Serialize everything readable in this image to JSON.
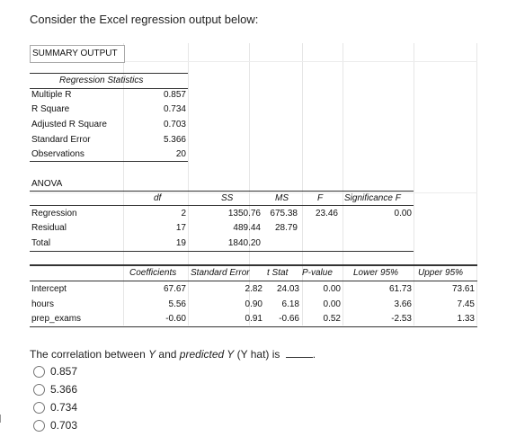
{
  "question": "Consider the Excel regression output below:",
  "summary_output_label": "SUMMARY OUTPUT",
  "regression_statistics": {
    "header": "Regression Statistics",
    "rows": [
      {
        "label": "Multiple R",
        "value": "0.857"
      },
      {
        "label": "R Square",
        "value": "0.734"
      },
      {
        "label": "Adjusted R Square",
        "value": "0.703"
      },
      {
        "label": "Standard Error",
        "value": "5.366"
      },
      {
        "label": "Observations",
        "value": "20"
      }
    ]
  },
  "anova": {
    "label": "ANOVA",
    "headers": [
      "df",
      "SS",
      "MS",
      "F",
      "Significance F"
    ],
    "rows": [
      {
        "label": "Regression",
        "df": "2",
        "ss": "1350.76",
        "ms": "675.38",
        "f": "23.46",
        "sig": "0.00"
      },
      {
        "label": "Residual",
        "df": "17",
        "ss": "489.44",
        "ms": "28.79"
      },
      {
        "label": "Total",
        "df": "19",
        "ss": "1840.20"
      }
    ]
  },
  "coefficients": {
    "headers": [
      "Coefficients",
      "Standard Error",
      "t Stat",
      "P-value",
      "Lower 95%",
      "Upper 95%"
    ],
    "rows": [
      {
        "label": "Intercept",
        "coef": "67.67",
        "se": "2.82",
        "t": "24.03",
        "p": "0.00",
        "lower": "61.73",
        "upper": "73.61"
      },
      {
        "label": "hours",
        "coef": "5.56",
        "se": "0.90",
        "t": "6.18",
        "p": "0.00",
        "lower": "3.66",
        "upper": "7.45"
      },
      {
        "label": "prep_exams",
        "coef": "-0.60",
        "se": "0.91",
        "t": "-0.66",
        "p": "0.52",
        "lower": "-2.53",
        "upper": "1.33"
      }
    ]
  },
  "prompt": {
    "text_a": "The correlation between ",
    "y": "Y",
    "text_b": " and ",
    "predicted": "predicted",
    "text_c": " Y",
    "text_d": " (Y hat) is ",
    "text_e": "."
  },
  "options": [
    "0.857",
    "5.366",
    "0.734",
    "0.703"
  ]
}
